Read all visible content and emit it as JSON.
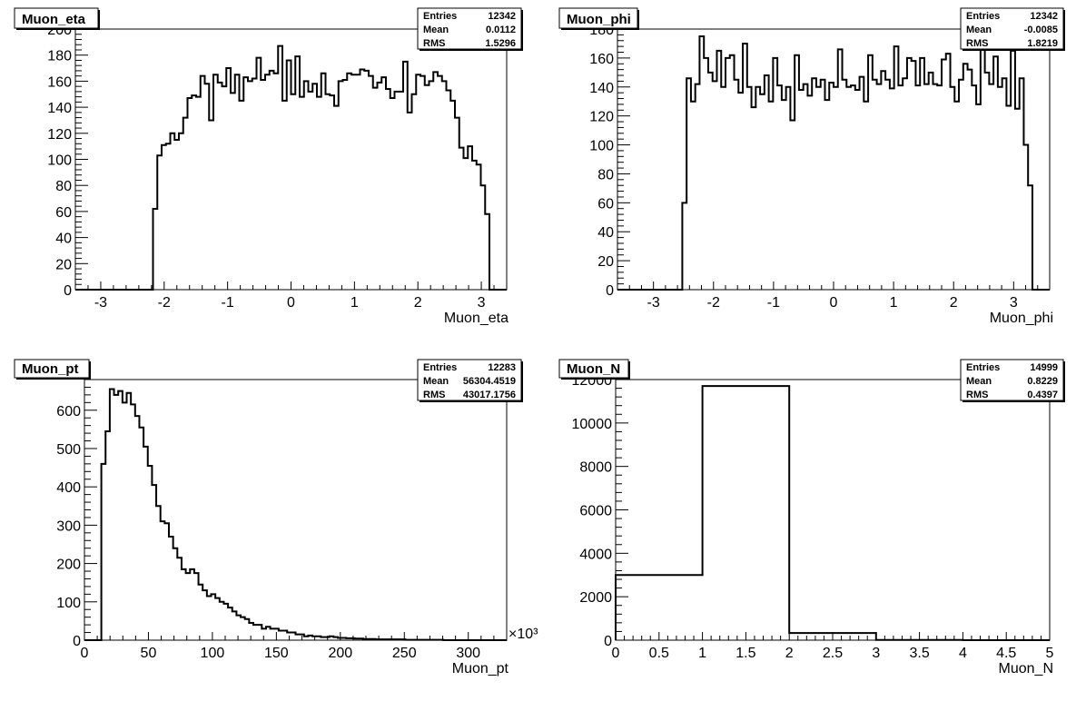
{
  "chart_data": [
    {
      "type": "bar",
      "title": "Muon_eta",
      "xlabel": "Muon_eta",
      "ylabel": "",
      "xlim": [
        -3.4,
        3.4
      ],
      "ylim": [
        0,
        200
      ],
      "xticks": [
        -3,
        -2,
        -1,
        0,
        1,
        2,
        3
      ],
      "xtick_labels": [
        "-3",
        "-2",
        "-1",
        "0",
        "1",
        "2",
        "3"
      ],
      "yticks": [
        0,
        20,
        40,
        60,
        80,
        100,
        120,
        140,
        160,
        180,
        200
      ],
      "ytick_labels": [
        "0",
        "20",
        "40",
        "60",
        "80",
        "100",
        "120",
        "140",
        "160",
        "180",
        "200"
      ],
      "bins": {
        "start": -3.4,
        "width": 0.068
      },
      "values": [
        0,
        0,
        0,
        0,
        0,
        0,
        0,
        0,
        0,
        0,
        0,
        0,
        0,
        0,
        0,
        0,
        0,
        0,
        62,
        103,
        111,
        112,
        120,
        115,
        120,
        132,
        147,
        149,
        148,
        164,
        158,
        130,
        165,
        159,
        156,
        170,
        151,
        165,
        145,
        163,
        160,
        162,
        178,
        161,
        165,
        168,
        166,
        187,
        145,
        176,
        150,
        179,
        148,
        160,
        152,
        158,
        148,
        166,
        150,
        149,
        141,
        160,
        161,
        166,
        165,
        165,
        169,
        168,
        164,
        155,
        159,
        163,
        154,
        147,
        152,
        152,
        175,
        136,
        150,
        165,
        164,
        157,
        160,
        167,
        164,
        160,
        153,
        145,
        132,
        109,
        101,
        110,
        99,
        96,
        80,
        58,
        0,
        0,
        0,
        0
      ],
      "stats": {
        "entries_label": "Entries",
        "entries": "12342",
        "mean_label": "Mean",
        "mean": "0.0112",
        "rms_label": "RMS",
        "rms": "1.5296"
      }
    },
    {
      "type": "bar",
      "title": "Muon_phi",
      "xlabel": "Muon_phi",
      "ylabel": "",
      "xlim": [
        -3.6,
        3.6
      ],
      "ylim": [
        0,
        180
      ],
      "xticks": [
        -3,
        -2,
        -1,
        0,
        1,
        2,
        3
      ],
      "xtick_labels": [
        "-3",
        "-2",
        "-1",
        "0",
        "1",
        "2",
        "3"
      ],
      "yticks": [
        0,
        20,
        40,
        60,
        80,
        100,
        120,
        140,
        160,
        180
      ],
      "ytick_labels": [
        "0",
        "20",
        "40",
        "60",
        "80",
        "100",
        "120",
        "140",
        "160",
        "180"
      ],
      "bins": {
        "start": -3.6,
        "width": 0.072
      },
      "values": [
        0,
        0,
        0,
        0,
        0,
        0,
        0,
        0,
        0,
        0,
        0,
        0,
        0,
        0,
        0,
        60,
        146,
        130,
        142,
        175,
        160,
        150,
        144,
        165,
        140,
        160,
        162,
        145,
        136,
        170,
        140,
        126,
        140,
        135,
        148,
        130,
        160,
        141,
        131,
        140,
        117,
        162,
        138,
        142,
        134,
        146,
        140,
        145,
        131,
        143,
        140,
        166,
        145,
        140,
        141,
        138,
        147,
        130,
        162,
        145,
        142,
        151,
        145,
        139,
        168,
        141,
        146,
        160,
        158,
        141,
        160,
        142,
        150,
        142,
        141,
        159,
        163,
        140,
        130,
        145,
        156,
        152,
        141,
        128,
        168,
        150,
        142,
        161,
        140,
        146,
        127,
        165,
        125,
        146,
        100,
        72,
        0,
        0,
        0,
        0
      ],
      "stats": {
        "entries_label": "Entries",
        "entries": "12342",
        "mean_label": "Mean",
        "mean": "-0.0085",
        "rms_label": "RMS",
        "rms": "1.8219"
      }
    },
    {
      "type": "bar",
      "title": "Muon_pt",
      "xlabel": "Muon_pt",
      "ylabel": "",
      "xexponent": "×10³",
      "xlim": [
        0,
        330
      ],
      "ylim": [
        0,
        680
      ],
      "xticks": [
        0,
        50,
        100,
        150,
        200,
        250,
        300
      ],
      "xtick_labels": [
        "0",
        "50",
        "100",
        "150",
        "200",
        "250",
        "300"
      ],
      "yticks": [
        0,
        100,
        200,
        300,
        400,
        500,
        600
      ],
      "ytick_labels": [
        "0",
        "100",
        "200",
        "300",
        "400",
        "500",
        "600"
      ],
      "bins": {
        "start": 0,
        "width": 3.3
      },
      "values": [
        0,
        0,
        0,
        0,
        460,
        545,
        655,
        640,
        650,
        620,
        645,
        615,
        585,
        555,
        505,
        455,
        405,
        350,
        310,
        305,
        270,
        240,
        215,
        185,
        175,
        185,
        175,
        145,
        130,
        115,
        120,
        110,
        100,
        95,
        85,
        75,
        65,
        60,
        55,
        45,
        40,
        40,
        30,
        35,
        30,
        30,
        25,
        25,
        20,
        20,
        15,
        15,
        10,
        12,
        10,
        10,
        8,
        8,
        10,
        8,
        6,
        6,
        5,
        5,
        4,
        4,
        3,
        3,
        3,
        2,
        2,
        2,
        2,
        2,
        2,
        2,
        1,
        1,
        1,
        1,
        1,
        1,
        1,
        1,
        1,
        0,
        0,
        0,
        0,
        0,
        0,
        0,
        0,
        0,
        0,
        0,
        0,
        0,
        0,
        0
      ],
      "stats": {
        "entries_label": "Entries",
        "entries": "12283",
        "mean_label": "Mean",
        "mean": "56304.4519",
        "rms_label": "RMS",
        "rms": "43017.1756"
      }
    },
    {
      "type": "bar",
      "title": "Muon_N",
      "xlabel": "Muon_N",
      "ylabel": "",
      "xlim": [
        0,
        5
      ],
      "ylim": [
        0,
        12000
      ],
      "xticks": [
        0,
        0.5,
        1,
        1.5,
        2,
        2.5,
        3,
        3.5,
        4,
        4.5,
        5
      ],
      "xtick_labels": [
        "0",
        "0.5",
        "1",
        "1.5",
        "2",
        "2.5",
        "3",
        "3.5",
        "4",
        "4.5",
        "5"
      ],
      "yticks": [
        0,
        2000,
        4000,
        6000,
        8000,
        10000,
        12000
      ],
      "ytick_labels": [
        "0",
        "2000",
        "4000",
        "6000",
        "8000",
        "10000",
        "12000"
      ],
      "bins": {
        "start": 0,
        "width": 1
      },
      "values": [
        3000,
        11700,
        330,
        10,
        0
      ],
      "stats": {
        "entries_label": "Entries",
        "entries": "14999",
        "mean_label": "Mean",
        "mean": "0.8229",
        "rms_label": "RMS",
        "rms": "0.4397"
      }
    }
  ]
}
